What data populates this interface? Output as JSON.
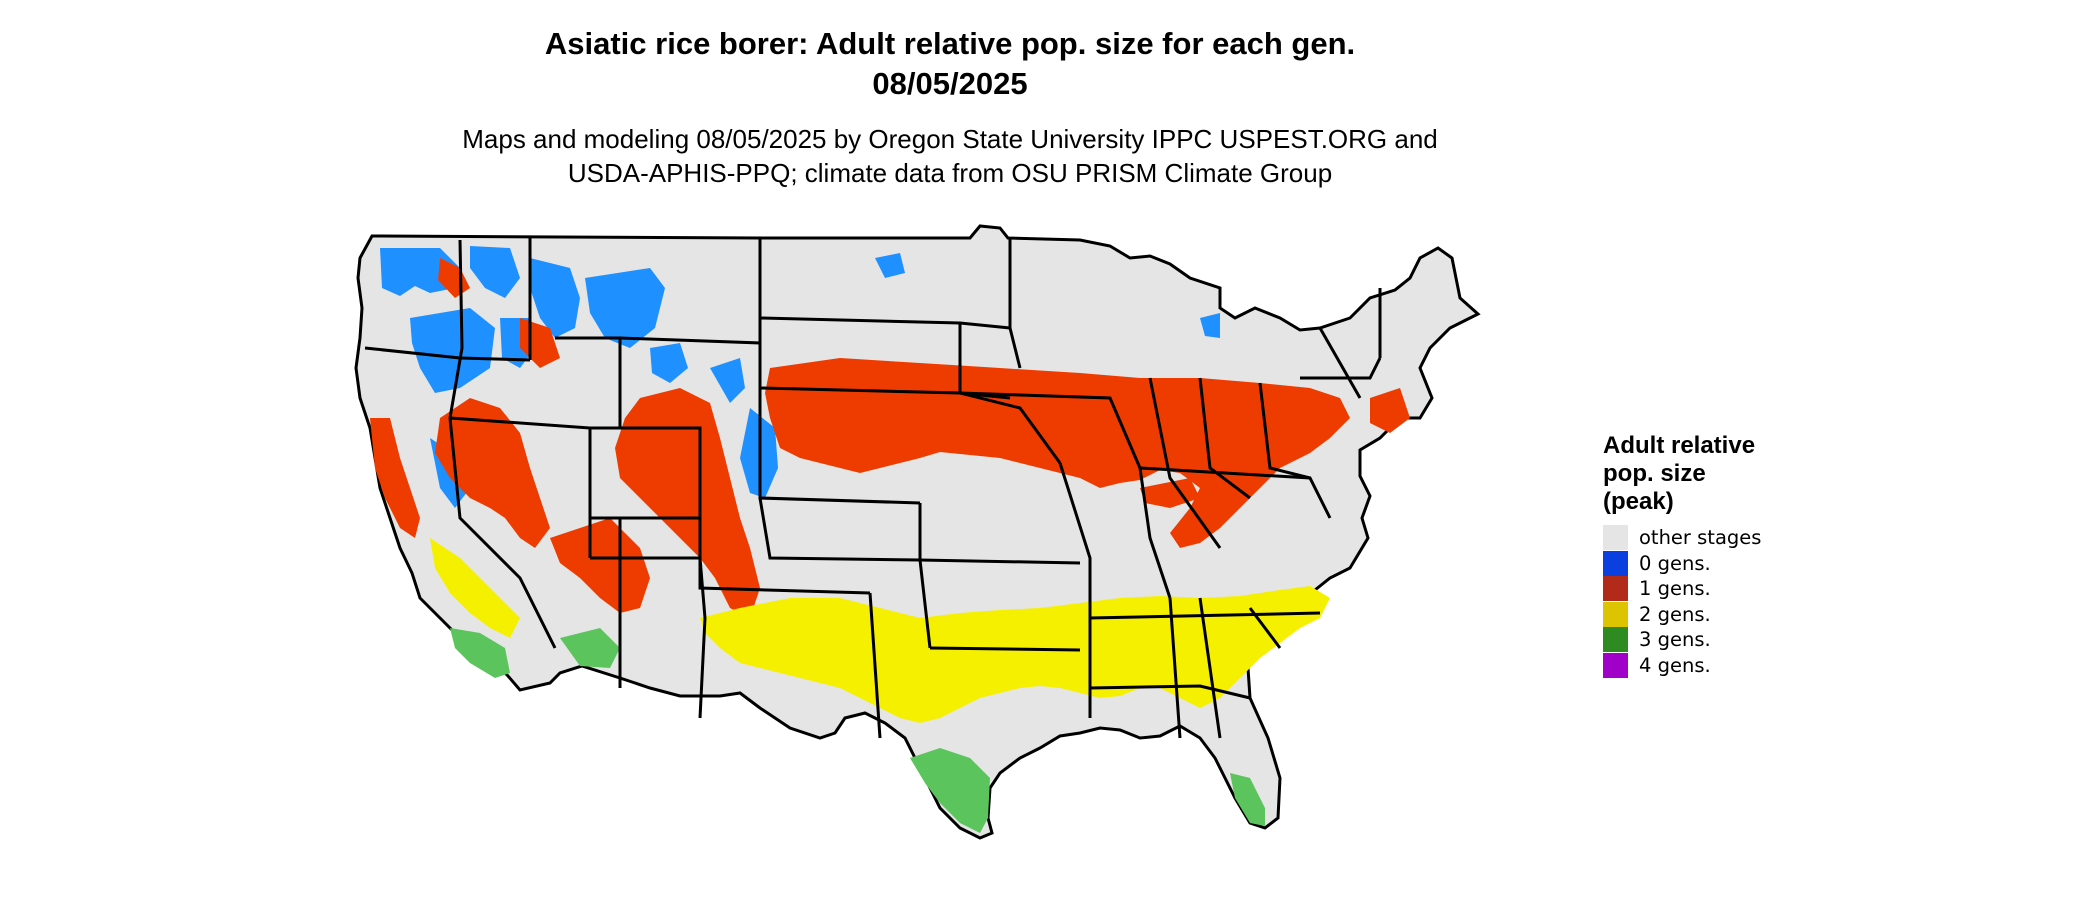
{
  "title_line1": "Asiatic rice borer: Adult relative pop. size for each gen.",
  "title_line2": "08/05/2025",
  "subtitle_line1": "Maps and modeling 08/05/2025 by Oregon State University IPPC USPEST.ORG and",
  "subtitle_line2": "USDA-APHIS-PPQ; climate data from OSU PRISM Climate Group",
  "legend": {
    "title_lines": [
      "Adult relative",
      "pop. size",
      "(peak)"
    ],
    "items": [
      {
        "label": "other stages",
        "color": "#e5e5e5"
      },
      {
        "label": "0 gens.",
        "color": "#0a3fe0"
      },
      {
        "label": "1 gens.",
        "color": "#b22a1a"
      },
      {
        "label": "2 gens.",
        "color": "#ddc400"
      },
      {
        "label": "3 gens.",
        "color": "#2e8b22"
      },
      {
        "label": "4 gens.",
        "color": "#a000c8"
      }
    ]
  },
  "map_colors": {
    "background": "#e5e5e5",
    "zero_gen_area": "#1e90ff",
    "one_gen_area": "#ee3b00",
    "two_gen_area": "#f5f000",
    "three_gen_area": "#5cc45c",
    "borders": "#000000"
  }
}
